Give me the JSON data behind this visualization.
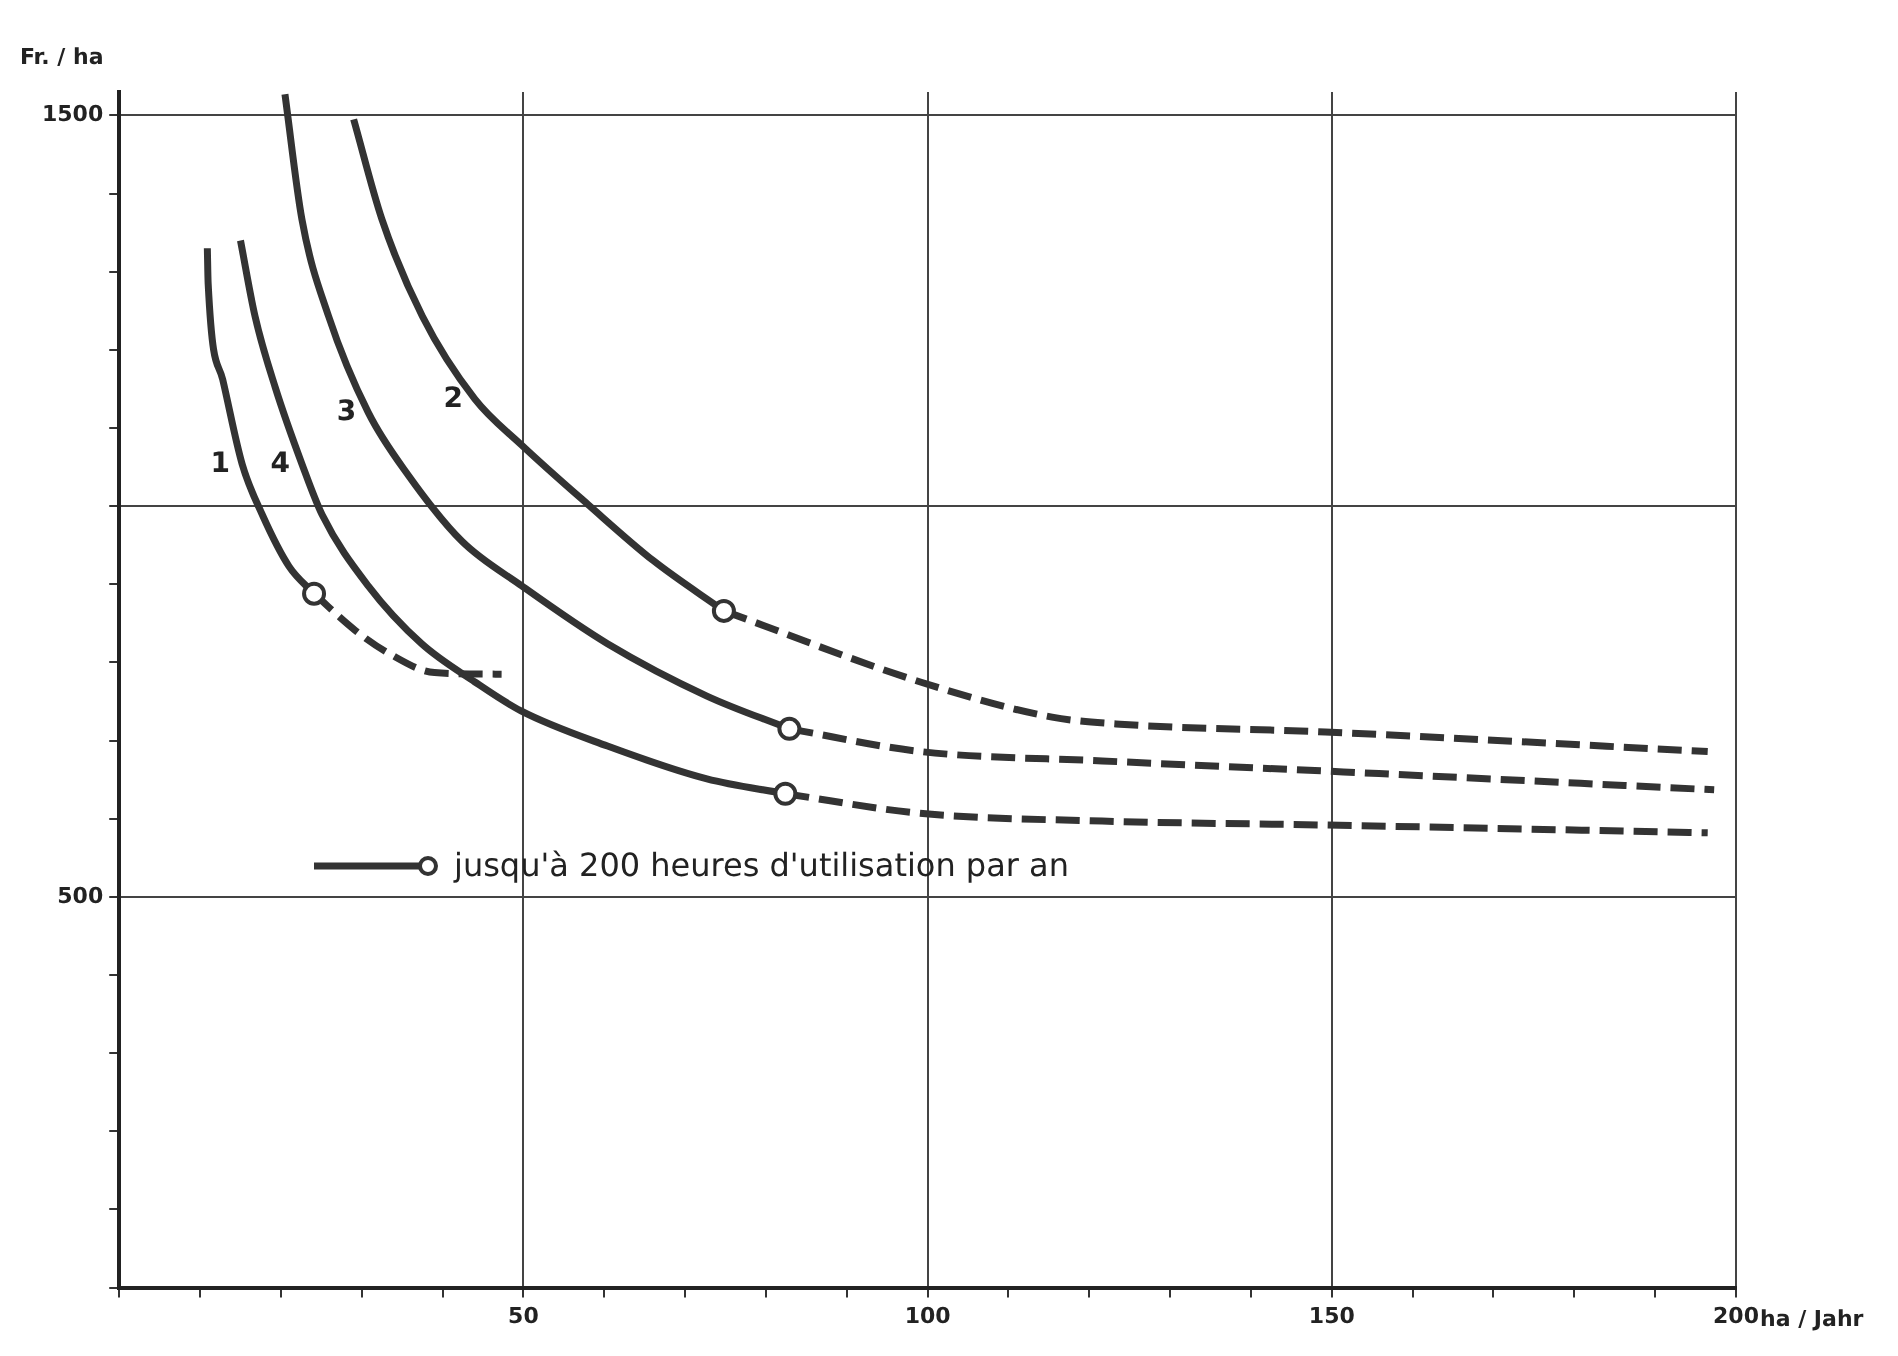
{
  "chart_data": {
    "type": "line",
    "ylabel": "Fr. / ha",
    "xlabel": "ha / Jahr",
    "xlim": [
      0,
      200
    ],
    "ylim": [
      0,
      1530
    ],
    "xticks": [
      {
        "value": 0,
        "label": null
      },
      {
        "value": 10,
        "label": null
      },
      {
        "value": 20,
        "label": null
      },
      {
        "value": 30,
        "label": null
      },
      {
        "value": 40,
        "label": null
      },
      50,
      {
        "value": 60,
        "label": null
      },
      {
        "value": 70,
        "label": null
      },
      {
        "value": 80,
        "label": null
      },
      {
        "value": 90,
        "label": null
      },
      100,
      {
        "value": 110,
        "label": null
      },
      {
        "value": 120,
        "label": null
      },
      {
        "value": 130,
        "label": null
      },
      {
        "value": 140,
        "label": null
      },
      150,
      {
        "value": 160,
        "label": null
      },
      {
        "value": 170,
        "label": null
      },
      {
        "value": 180,
        "label": null
      },
      {
        "value": 190,
        "label": null
      },
      200
    ],
    "yticks": [
      {
        "value": 0,
        "label": null
      },
      {
        "value": 100,
        "label": null
      },
      {
        "value": 200,
        "label": null
      },
      {
        "value": 300,
        "label": null
      },
      {
        "value": 400,
        "label": null
      },
      500,
      {
        "value": 600,
        "label": null
      },
      {
        "value": 700,
        "label": null
      },
      {
        "value": 800,
        "label": null
      },
      {
        "value": 900,
        "label": null
      },
      {
        "value": 1000,
        "label": null
      },
      {
        "value": 1100,
        "label": null
      },
      {
        "value": 1200,
        "label": null
      },
      {
        "value": 1300,
        "label": null
      },
      {
        "value": 1400,
        "label": null
      },
      1500
    ],
    "grid": true,
    "legend": false,
    "marker": "none",
    "annotations": [
      "jusqu'à 200 heures d'utilisation par an"
    ],
    "series": [
      {
        "name": "1",
        "color": "#333333",
        "line_style": "solid",
        "x": [
          10.9,
          11,
          12.8,
          15.2,
          17.7,
          21,
          24.1
        ],
        "values": [
          1330,
          1285,
          1162,
          1054,
          989,
          923,
          888
        ]
      },
      {
        "color": "#333333",
        "line_style": "dashed",
        "x": [
          24.1,
          29.2,
          33.3,
          39,
          47.3
        ],
        "values": [
          888,
          841,
          812,
          787,
          785
        ]
      },
      {
        "name": "4",
        "color": "#333333",
        "line_style": "solid",
        "x": [
          15,
          16.8,
          19.3,
          22.6,
          25.1,
          30.8,
          37.4,
          44,
          49.7,
          60.4,
          72.7,
          82.4
        ],
        "values": [
          1340,
          1243,
          1152,
          1054,
          989,
          898,
          824,
          775,
          738,
          693,
          651,
          632
        ]
      },
      {
        "color": "#333333",
        "line_style": "dashed",
        "x": [
          82.4,
          99,
          121.6,
          149,
          196.5
        ],
        "values": [
          632,
          607,
          597,
          592,
          582
        ]
      },
      {
        "name": "3",
        "color": "#333333",
        "line_style": "solid",
        "x": [
          20.5,
          22.6,
          25.9,
          30.8,
          35.8,
          42.4,
          49.8,
          60.4,
          72.7,
          82.9
        ],
        "values": [
          1527,
          1367,
          1243,
          1120,
          1039,
          955,
          898,
          824,
          757,
          715
        ]
      },
      {
        "color": "#333333",
        "line_style": "dashed",
        "x": [
          82.9,
          99.1,
          121.6,
          149.2,
          197.3
        ],
        "values": [
          715,
          686,
          674,
          661,
          637
        ]
      },
      {
        "name": "2",
        "color": "#333333",
        "line_style": "solid",
        "x": [
          29,
          32.5,
          37.5,
          44,
          49.8,
          58,
          66.1,
          74.8
        ],
        "values": [
          1495,
          1367,
          1243,
          1137,
          1078,
          1002,
          930,
          866
        ]
      },
      {
        "color": "#333333",
        "line_style": "dashed",
        "x": [
          74.8,
          99.1,
          115.4,
          123.8,
          149.2,
          196.5
        ],
        "values": [
          866,
          775,
          730,
          721,
          711,
          686
        ]
      },
      {
        "type": "scatter",
        "marker": "circle",
        "color": "#333333",
        "x": [
          24.1,
          82.4,
          82.9,
          74.8
        ],
        "values": [
          888,
          632,
          715,
          866
        ]
      }
    ]
  }
}
